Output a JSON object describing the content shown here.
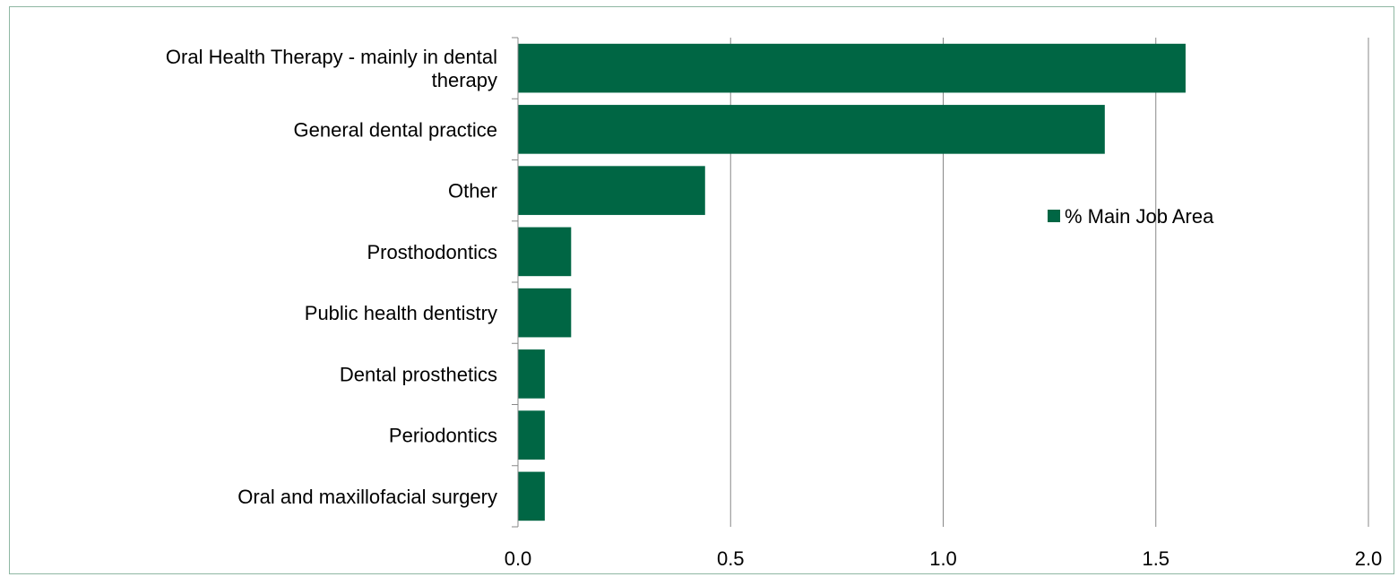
{
  "chart_data": {
    "type": "bar",
    "orientation": "horizontal",
    "categories": [
      [
        "Oral Health Therapy - mainly in dental",
        "therapy"
      ],
      [
        "General dental practice"
      ],
      [
        "Other"
      ],
      [
        "Prosthodontics"
      ],
      [
        "Public health dentistry"
      ],
      [
        "Dental prosthetics"
      ],
      [
        "Periodontics"
      ],
      [
        "Oral and maxillofacial surgery"
      ]
    ],
    "series": [
      {
        "name": "% Main Job Area",
        "values": [
          1.57,
          1.38,
          0.44,
          0.125,
          0.125,
          0.063,
          0.063,
          0.063
        ]
      }
    ],
    "xlim": [
      0,
      2.0
    ],
    "x_ticks": [
      "0.0",
      "0.5",
      "1.0",
      "1.5",
      "2.0"
    ],
    "x_tick_values": [
      0,
      0.5,
      1.0,
      1.5,
      2.0
    ],
    "grid": "vertical",
    "legend": "right",
    "bar_color": "#006644",
    "grid_color": "#888888"
  }
}
